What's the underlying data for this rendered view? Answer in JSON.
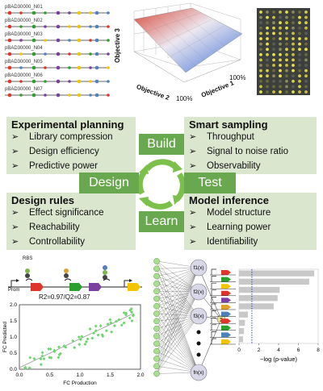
{
  "constructs": [
    "pBAD30000_N01",
    "pBAD30000_N02",
    "pBAD30000_N03",
    "pBAD30000_N04",
    "pBAD30000_N05",
    "pBAD30000_N06",
    "pBAD30000_N07"
  ],
  "surface": {
    "z_label": "Objective 3",
    "x_label": "Objective 1",
    "y_label": "Objective 2",
    "pct_x": "100%",
    "pct_y": "100%",
    "pct_y_left": "100%"
  },
  "panels": {
    "planning": {
      "title": "Experimental planning",
      "items": [
        "Library compression",
        "Design efficiency",
        "Predictive power"
      ]
    },
    "sampling": {
      "title": "Smart sampling",
      "items": [
        "Throughput",
        "Signal to noise ratio",
        "Observability"
      ]
    },
    "rules": {
      "title": "Design rules",
      "items": [
        "Effect significance",
        "Reachability",
        "Controllability"
      ]
    },
    "inference": {
      "title": "Model inference",
      "items": [
        "Model structure",
        "Learning power",
        "Identifiability"
      ]
    }
  },
  "cycle": {
    "build": "Build",
    "design": "Design",
    "test": "Test",
    "learn": "Learn"
  },
  "scatter": {
    "r2": "R2=0.97/Q2=0.87",
    "xlabel": "FC Production",
    "ylabel": "FC Predicted",
    "xticks": [
      "0.0",
      "0.5",
      "1.0",
      "1.5",
      "2.0"
    ],
    "yticks": [
      "0.0",
      "0.5",
      "1.0",
      "1.5",
      "2.0"
    ],
    "prom": "Prom",
    "rbs": "RBS"
  },
  "network": {
    "nodes": [
      "f1(x)",
      "f2(x)",
      "f3(x)",
      "fn(x)"
    ],
    "sum": "Σ"
  },
  "bar_chart": {
    "xlabel": "−log (p-value)",
    "xticks": [
      "0",
      "2",
      "4",
      "6",
      "8"
    ],
    "values": [
      7.6,
      7.1,
      4.1,
      3.9,
      3.5,
      0.9,
      0.6,
      0.5,
      0.4
    ],
    "xlim": [
      0,
      8
    ],
    "threshold": 1.3
  },
  "colors": {
    "panel": "#dbe6cf",
    "accent": "#6aa84f",
    "bar": "#c8c8c8",
    "threshold": "#1f4fd1"
  }
}
